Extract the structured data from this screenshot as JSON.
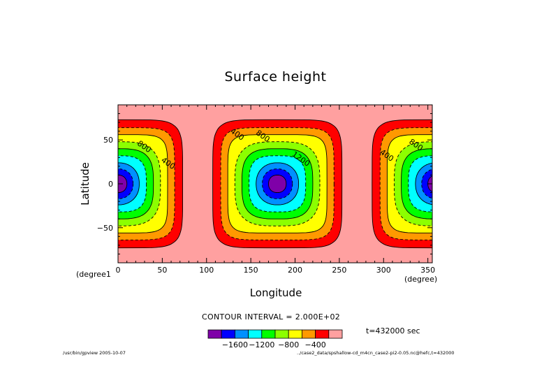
{
  "chart_data": {
    "type": "contour",
    "title": "Surface height",
    "xlabel": "Longitude",
    "ylabel": "Latitude",
    "x_unit": "(degree)",
    "y_unit": "(degree1",
    "xlim": [
      0,
      355
    ],
    "ylim": [
      -90,
      90
    ],
    "x_ticks": [
      0,
      50,
      100,
      150,
      200,
      250,
      300,
      350
    ],
    "y_ticks": [
      -50,
      0,
      50
    ],
    "contour_interval_text": "CONTOUR INTERVAL = 2.000E+02",
    "time_text": "t=432000 sec",
    "levels": [
      -1800,
      -1600,
      -1400,
      -1200,
      -1000,
      -800,
      -600,
      -400,
      -200,
      0
    ],
    "level_colors": [
      "#7f00a8",
      "#0000ff",
      "#0090ff",
      "#00ffff",
      "#00ff00",
      "#8cff00",
      "#ffff00",
      "#ff9900",
      "#ff0000",
      "#ffa0a0"
    ],
    "colorbar_ticks": [
      {
        "label": "−1600",
        "index": 2
      },
      {
        "label": "−1200",
        "index": 4
      },
      {
        "label": "−800",
        "index": 6
      },
      {
        "label": "−400",
        "index": 8
      }
    ],
    "depressions": [
      {
        "lon": 0,
        "lat": 0,
        "min": -1900
      },
      {
        "lon": 180,
        "lat": 0,
        "min": -1900
      },
      {
        "lon": 360,
        "lat": 0,
        "min": -1900
      }
    ],
    "contour_labels": [
      {
        "text": "800",
        "lon": 28,
        "lat": 40
      },
      {
        "text": "400",
        "lon": 55,
        "lat": 21
      },
      {
        "text": "400",
        "lon": 133,
        "lat": 54
      },
      {
        "text": "800",
        "lon": 162,
        "lat": 52
      },
      {
        "text": "1200",
        "lon": 205,
        "lat": 26
      },
      {
        "text": "400",
        "lon": 302,
        "lat": 30
      },
      {
        "text": "800",
        "lon": 335,
        "lat": 42
      }
    ]
  },
  "footer": {
    "left": "/usr/bin/gpview  2005-10-07",
    "right": "../case2_data/spshallow-cd_m4cn_case2-pi2-0.05.nc@hefc,t=432000"
  }
}
